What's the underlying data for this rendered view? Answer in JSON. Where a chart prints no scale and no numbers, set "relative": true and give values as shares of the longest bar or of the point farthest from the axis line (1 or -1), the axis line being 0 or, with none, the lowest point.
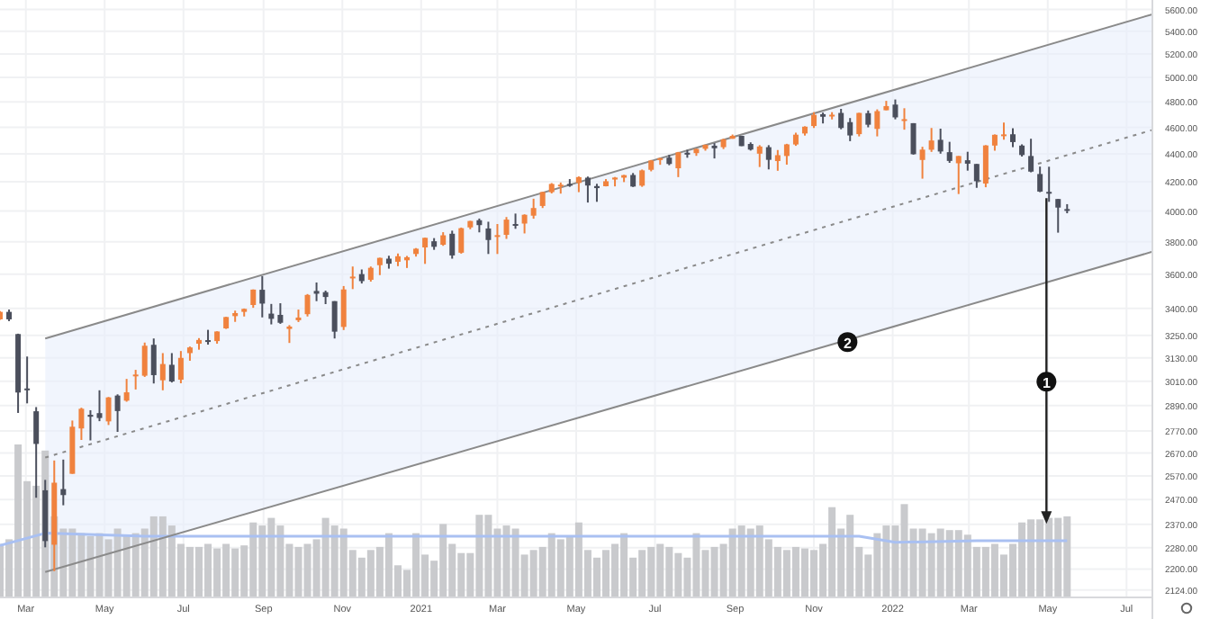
{
  "chart_data": [
    {
      "type": "candlestick",
      "log": "y",
      "grid": true,
      "xlim": [
        "2020-02-10",
        "2022-07-21"
      ],
      "xticks": [
        {
          "value": "2020-03-01",
          "label": "Mar"
        },
        {
          "value": "2020-05-01",
          "label": "May"
        },
        {
          "value": "2020-07-01",
          "label": "Jul"
        },
        {
          "value": "2020-09-01",
          "label": "Sep"
        },
        {
          "value": "2020-11-01",
          "label": "Nov"
        },
        {
          "value": "2021-01-01",
          "label": "2021"
        },
        {
          "value": "2021-03-01",
          "label": "Mar"
        },
        {
          "value": "2021-05-01",
          "label": "May"
        },
        {
          "value": "2021-07-01",
          "label": "Jul"
        },
        {
          "value": "2021-09-01",
          "label": "Sep"
        },
        {
          "value": "2021-11-01",
          "label": "Nov"
        },
        {
          "value": "2022-01-01",
          "label": "2022"
        },
        {
          "value": "2022-03-01",
          "label": "Mar"
        },
        {
          "value": "2022-05-01",
          "label": "May"
        },
        {
          "value": "2022-07-01",
          "label": "Jul"
        }
      ],
      "ylim": [
        2098,
        5690
      ],
      "yticks": [
        {
          "value": 5600,
          "label": "5600.00"
        },
        {
          "value": 5400,
          "label": "5400.00"
        },
        {
          "value": 5200,
          "label": "5200.00"
        },
        {
          "value": 5000,
          "label": "5000.00"
        },
        {
          "value": 4800,
          "label": "4800.00"
        },
        {
          "value": 4600,
          "label": "4600.00"
        },
        {
          "value": 4400,
          "label": "4400.00"
        },
        {
          "value": 4200,
          "label": "4200.00"
        },
        {
          "value": 4000,
          "label": "4000.00"
        },
        {
          "value": 3800,
          "label": "3800.00"
        },
        {
          "value": 3600,
          "label": "3600.00"
        },
        {
          "value": 3400,
          "label": "3400.00"
        },
        {
          "value": 3250,
          "label": "3250.00"
        },
        {
          "value": 3130,
          "label": "3130.00"
        },
        {
          "value": 3010,
          "label": "3010.00"
        },
        {
          "value": 2890,
          "label": "2890.00"
        },
        {
          "value": 2770,
          "label": "2770.00"
        },
        {
          "value": 2670,
          "label": "2670.00"
        },
        {
          "value": 2570,
          "label": "2570.00"
        },
        {
          "value": 2470,
          "label": "2470.00"
        },
        {
          "value": 2370,
          "label": "2370.00"
        },
        {
          "value": 2280,
          "label": "2280.00"
        },
        {
          "value": 2200,
          "label": "2200.00"
        },
        {
          "value": 2124,
          "label": "2124.00"
        }
      ],
      "x": [
        "2020-02-10",
        "2020-02-17",
        "2020-02-24",
        "2020-03-02",
        "2020-03-09",
        "2020-03-16",
        "2020-03-23",
        "2020-03-30",
        "2020-04-06",
        "2020-04-13",
        "2020-04-20",
        "2020-04-27",
        "2020-05-04",
        "2020-05-11",
        "2020-05-18",
        "2020-05-25",
        "2020-06-01",
        "2020-06-08",
        "2020-06-15",
        "2020-06-22",
        "2020-06-29",
        "2020-07-06",
        "2020-07-13",
        "2020-07-20",
        "2020-07-27",
        "2020-08-03",
        "2020-08-10",
        "2020-08-17",
        "2020-08-24",
        "2020-08-31",
        "2020-09-07",
        "2020-09-14",
        "2020-09-21",
        "2020-09-28",
        "2020-10-05",
        "2020-10-12",
        "2020-10-19",
        "2020-10-26",
        "2020-11-02",
        "2020-11-09",
        "2020-11-16",
        "2020-11-23",
        "2020-11-30",
        "2020-12-07",
        "2020-12-14",
        "2020-12-21",
        "2020-12-28",
        "2021-01-04",
        "2021-01-11",
        "2021-01-18",
        "2021-01-25",
        "2021-02-01",
        "2021-02-08",
        "2021-02-15",
        "2021-02-22",
        "2021-03-01",
        "2021-03-08",
        "2021-03-15",
        "2021-03-22",
        "2021-03-29",
        "2021-04-05",
        "2021-04-12",
        "2021-04-19",
        "2021-04-26",
        "2021-05-03",
        "2021-05-10",
        "2021-05-17",
        "2021-05-24",
        "2021-05-31",
        "2021-06-07",
        "2021-06-14",
        "2021-06-21",
        "2021-06-28",
        "2021-07-05",
        "2021-07-12",
        "2021-07-19",
        "2021-07-26",
        "2021-08-02",
        "2021-08-09",
        "2021-08-16",
        "2021-08-23",
        "2021-08-30",
        "2021-09-06",
        "2021-09-13",
        "2021-09-20",
        "2021-09-27",
        "2021-10-04",
        "2021-10-11",
        "2021-10-18",
        "2021-10-25",
        "2021-11-01",
        "2021-11-08",
        "2021-11-15",
        "2021-11-22",
        "2021-11-29",
        "2021-12-06",
        "2021-12-13",
        "2021-12-20",
        "2021-12-27",
        "2022-01-03",
        "2022-01-10",
        "2022-01-17",
        "2022-01-24",
        "2022-01-31",
        "2022-02-07",
        "2022-02-14",
        "2022-02-21",
        "2022-02-28",
        "2022-03-07",
        "2022-03-14",
        "2022-03-21",
        "2022-03-28",
        "2022-04-04",
        "2022-04-11",
        "2022-04-18",
        "2022-04-25",
        "2022-05-02",
        "2022-05-09",
        "2022-05-16"
      ],
      "ohlc": [
        [
          3338,
          3385,
          3335,
          3380
        ],
        [
          3380,
          3393,
          3328,
          3338
        ],
        [
          3257,
          3259,
          2855,
          2954
        ],
        [
          2974,
          3137,
          2901,
          2972
        ],
        [
          2863,
          2883,
          2478,
          2711
        ],
        [
          2509,
          2553,
          2281,
          2305
        ],
        [
          2291,
          2637,
          2192,
          2541
        ],
        [
          2514,
          2641,
          2447,
          2489
        ],
        [
          2579,
          2819,
          2579,
          2790
        ],
        [
          2782,
          2880,
          2729,
          2875
        ],
        [
          2846,
          2868,
          2727,
          2837
        ],
        [
          2854,
          2965,
          2816,
          2831
        ],
        [
          2815,
          2932,
          2798,
          2930
        ],
        [
          2939,
          2945,
          2766,
          2864
        ],
        [
          2914,
          3022,
          2909,
          2955
        ],
        [
          3037,
          3068,
          2969,
          3044
        ],
        [
          3038,
          3211,
          3032,
          3194
        ],
        [
          3199,
          3233,
          2999,
          3041
        ],
        [
          3015,
          3155,
          2965,
          3098
        ],
        [
          3094,
          3155,
          3004,
          3009
        ],
        [
          3018,
          3166,
          3000,
          3130
        ],
        [
          3155,
          3190,
          3115,
          3185
        ],
        [
          3205,
          3235,
          3173,
          3225
        ],
        [
          3224,
          3280,
          3200,
          3216
        ],
        [
          3219,
          3272,
          3205,
          3271
        ],
        [
          3288,
          3352,
          3285,
          3351
        ],
        [
          3356,
          3387,
          3324,
          3373
        ],
        [
          3380,
          3399,
          3354,
          3397
        ],
        [
          3419,
          3509,
          3403,
          3508
        ],
        [
          3507,
          3588,
          3349,
          3427
        ],
        [
          3370,
          3425,
          3310,
          3341
        ],
        [
          3363,
          3429,
          3313,
          3319
        ],
        [
          3285,
          3306,
          3209,
          3298
        ],
        [
          3333,
          3393,
          3323,
          3348
        ],
        [
          3367,
          3482,
          3354,
          3477
        ],
        [
          3500,
          3550,
          3441,
          3484
        ],
        [
          3493,
          3502,
          3424,
          3465
        ],
        [
          3441,
          3441,
          3233,
          3270
        ],
        [
          3296,
          3529,
          3279,
          3509
        ],
        [
          3583,
          3646,
          3511,
          3585
        ],
        [
          3600,
          3628,
          3544,
          3558
        ],
        [
          3566,
          3646,
          3555,
          3638
        ],
        [
          3654,
          3700,
          3594,
          3699
        ],
        [
          3694,
          3712,
          3633,
          3663
        ],
        [
          3675,
          3726,
          3648,
          3709
        ],
        [
          3684,
          3711,
          3637,
          3703
        ],
        [
          3723,
          3760,
          3707,
          3756
        ],
        [
          3764,
          3826,
          3662,
          3825
        ],
        [
          3803,
          3823,
          3749,
          3768
        ],
        [
          3781,
          3861,
          3774,
          3841
        ],
        [
          3851,
          3871,
          3694,
          3714
        ],
        [
          3731,
          3891,
          3725,
          3887
        ],
        [
          3892,
          3935,
          3880,
          3934
        ],
        [
          3939,
          3950,
          3860,
          3907
        ],
        [
          3885,
          3929,
          3723,
          3811
        ],
        [
          3842,
          3914,
          3723,
          3842
        ],
        [
          3844,
          3960,
          3818,
          3943
        ],
        [
          3914,
          3983,
          3883,
          3913
        ],
        [
          3917,
          3978,
          3853,
          3975
        ],
        [
          3969,
          4083,
          3949,
          4020
        ],
        [
          4034,
          4130,
          4020,
          4129
        ],
        [
          4128,
          4191,
          4119,
          4185
        ],
        [
          4179,
          4195,
          4118,
          4180
        ],
        [
          4185,
          4219,
          4165,
          4181
        ],
        [
          4192,
          4238,
          4128,
          4233
        ],
        [
          4229,
          4237,
          4057,
          4174
        ],
        [
          4170,
          4186,
          4062,
          4156
        ],
        [
          4169,
          4219,
          4168,
          4204
        ],
        [
          4216,
          4234,
          4168,
          4230
        ],
        [
          4229,
          4249,
          4198,
          4247
        ],
        [
          4248,
          4262,
          4164,
          4167
        ],
        [
          4173,
          4287,
          4165,
          4281
        ],
        [
          4285,
          4356,
          4274,
          4352
        ],
        [
          4356,
          4372,
          4321,
          4369
        ],
        [
          4373,
          4393,
          4318,
          4327
        ],
        [
          4296,
          4415,
          4233,
          4412
        ],
        [
          4409,
          4430,
          4372,
          4395
        ],
        [
          4406,
          4440,
          4386,
          4437
        ],
        [
          4438,
          4469,
          4424,
          4468
        ],
        [
          4461,
          4480,
          4367,
          4442
        ],
        [
          4450,
          4513,
          4436,
          4509
        ],
        [
          4513,
          4545,
          4513,
          4535
        ],
        [
          4535,
          4535,
          4458,
          4458
        ],
        [
          4474,
          4486,
          4425,
          4432
        ],
        [
          4402,
          4465,
          4305,
          4455
        ],
        [
          4450,
          4465,
          4288,
          4357
        ],
        [
          4348,
          4429,
          4278,
          4391
        ],
        [
          4385,
          4475,
          4322,
          4471
        ],
        [
          4470,
          4559,
          4460,
          4544
        ],
        [
          4553,
          4608,
          4537,
          4605
        ],
        [
          4610,
          4718,
          4595,
          4697
        ],
        [
          4702,
          4715,
          4630,
          4682
        ],
        [
          4689,
          4718,
          4661,
          4698
        ],
        [
          4712,
          4744,
          4585,
          4595
        ],
        [
          4640,
          4672,
          4495,
          4538
        ],
        [
          4548,
          4713,
          4531,
          4712
        ],
        [
          4710,
          4731,
          4600,
          4620
        ],
        [
          4588,
          4740,
          4531,
          4726
        ],
        [
          4733,
          4808,
          4733,
          4766
        ],
        [
          4778,
          4819,
          4662,
          4677
        ],
        [
          4655,
          4749,
          4582,
          4663
        ],
        [
          4632,
          4632,
          4395,
          4398
        ],
        [
          4356,
          4453,
          4222,
          4432
        ],
        [
          4431,
          4595,
          4415,
          4500
        ],
        [
          4505,
          4590,
          4402,
          4418
        ],
        [
          4413,
          4490,
          4335,
          4349
        ],
        [
          4332,
          4385,
          4115,
          4385
        ],
        [
          4354,
          4416,
          4279,
          4329
        ],
        [
          4327,
          4327,
          4158,
          4204
        ],
        [
          4188,
          4465,
          4162,
          4463
        ],
        [
          4462,
          4546,
          4424,
          4543
        ],
        [
          4541,
          4637,
          4506,
          4546
        ],
        [
          4547,
          4593,
          4450,
          4488
        ],
        [
          4462,
          4471,
          4381,
          4392
        ],
        [
          4385,
          4513,
          4267,
          4272
        ],
        [
          4255,
          4308,
          4128,
          4132
        ],
        [
          4130,
          4307,
          4062,
          4123
        ],
        [
          4081,
          4081,
          3858,
          4023
        ],
        [
          4013,
          4046,
          3985,
          4008
        ]
      ],
      "colors": [
        "#f0823e",
        "#4b4f5c",
        "#4b4f5c",
        "#4b4f5c",
        "#4b4f5c",
        "#4b4f5c",
        "#f0823e",
        "#4b4f5c",
        "#f0823e",
        "#f0823e",
        "#4b4f5c",
        "#4b4f5c",
        "#f0823e",
        "#4b4f5c",
        "#f0823e",
        "#f0823e",
        "#f0823e",
        "#4b4f5c",
        "#f0823e",
        "#4b4f5c",
        "#f0823e",
        "#f0823e",
        "#f0823e",
        "#4b4f5c",
        "#f0823e",
        "#f0823e",
        "#f0823e",
        "#f0823e",
        "#f0823e",
        "#4b4f5c",
        "#4b4f5c",
        "#4b4f5c",
        "#f0823e",
        "#f0823e",
        "#f0823e",
        "#4b4f5c",
        "#4b4f5c",
        "#4b4f5c",
        "#f0823e",
        "#f0823e",
        "#4b4f5c",
        "#f0823e",
        "#f0823e",
        "#4b4f5c",
        "#f0823e",
        "#f0823e",
        "#f0823e",
        "#f0823e",
        "#4b4f5c",
        "#f0823e",
        "#4b4f5c",
        "#f0823e",
        "#f0823e",
        "#4b4f5c",
        "#4b4f5c",
        "#f0823e",
        "#f0823e",
        "#4b4f5c",
        "#f0823e",
        "#f0823e",
        "#f0823e",
        "#f0823e",
        "#f0823e",
        "#4b4f5c",
        "#f0823e",
        "#4b4f5c",
        "#4b4f5c",
        "#f0823e",
        "#f0823e",
        "#f0823e",
        "#4b4f5c",
        "#f0823e",
        "#f0823e",
        "#f0823e",
        "#4b4f5c",
        "#f0823e",
        "#4b4f5c",
        "#f0823e",
        "#f0823e",
        "#4b4f5c",
        "#f0823e",
        "#f0823e",
        "#4b4f5c",
        "#4b4f5c",
        "#f0823e",
        "#4b4f5c",
        "#f0823e",
        "#f0823e",
        "#f0823e",
        "#f0823e",
        "#f0823e",
        "#4b4f5c",
        "#f0823e",
        "#4b4f5c",
        "#4b4f5c",
        "#f0823e",
        "#4b4f5c",
        "#f0823e",
        "#f0823e",
        "#4b4f5c",
        "#f0823e",
        "#4b4f5c",
        "#f0823e",
        "#f0823e",
        "#4b4f5c",
        "#4b4f5c",
        "#f0823e",
        "#4b4f5c",
        "#4b4f5c",
        "#f0823e",
        "#f0823e",
        "#f0823e",
        "#4b4f5c",
        "#4b4f5c",
        "#4b4f5c",
        "#4b4f5c",
        "#4b4f5c",
        "#4b4f5c",
        "#4b4f5c"
      ],
      "series": [
        {
          "type": "line",
          "color": "#8a8a8a",
          "x": [
            "2020-03-16",
            "2022-07-21"
          ],
          "values": [
            3233,
            5556
          ]
        },
        {
          "type": "line",
          "color": "#8a8a8a",
          "line_style": "dotted",
          "x": [
            "2020-03-16",
            "2022-07-21"
          ],
          "values": [
            2650,
            4580
          ],
          "lower": [
            2189,
            3737
          ],
          "upper": [
            3233,
            5556
          ]
        },
        {
          "type": "line",
          "color": "#8a8a8a",
          "x": [
            "2020-03-16",
            "2022-07-21"
          ],
          "values": [
            2189,
            3737
          ]
        }
      ],
      "annotations": [
        {
          "text": "1",
          "x": "2022-04-30",
          "y": 3008
        },
        {
          "text": "2",
          "x": "2021-11-27",
          "y": 3214
        }
      ]
    },
    {
      "type": "bar",
      "relative": true,
      "xlim": [
        "2020-02-10",
        "2022-07-21"
      ],
      "series": [
        {
          "type": "bar",
          "color": "#c9cacd",
          "x": [
            "2020-02-10",
            "2020-02-17",
            "2020-02-24",
            "2020-03-02",
            "2020-03-09",
            "2020-03-16",
            "2020-03-23",
            "2020-03-30",
            "2020-04-06",
            "2020-04-13",
            "2020-04-20",
            "2020-04-27",
            "2020-05-04",
            "2020-05-11",
            "2020-05-18",
            "2020-05-25",
            "2020-06-01",
            "2020-06-08",
            "2020-06-15",
            "2020-06-22",
            "2020-06-29",
            "2020-07-06",
            "2020-07-13",
            "2020-07-20",
            "2020-07-27",
            "2020-08-03",
            "2020-08-10",
            "2020-08-17",
            "2020-08-24",
            "2020-08-31",
            "2020-09-07",
            "2020-09-14",
            "2020-09-21",
            "2020-09-28",
            "2020-10-05",
            "2020-10-12",
            "2020-10-19",
            "2020-10-26",
            "2020-11-02",
            "2020-11-09",
            "2020-11-16",
            "2020-11-23",
            "2020-11-30",
            "2020-12-07",
            "2020-12-14",
            "2020-12-21",
            "2020-12-28",
            "2021-01-04",
            "2021-01-11",
            "2021-01-18",
            "2021-01-25",
            "2021-02-01",
            "2021-02-08",
            "2021-02-15",
            "2021-02-22",
            "2021-03-01",
            "2021-03-08",
            "2021-03-15",
            "2021-03-22",
            "2021-03-29",
            "2021-04-05",
            "2021-04-12",
            "2021-04-19",
            "2021-04-26",
            "2021-05-03",
            "2021-05-10",
            "2021-05-17",
            "2021-05-24",
            "2021-05-31",
            "2021-06-07",
            "2021-06-14",
            "2021-06-21",
            "2021-06-28",
            "2021-07-05",
            "2021-07-12",
            "2021-07-19",
            "2021-07-26",
            "2021-08-02",
            "2021-08-09",
            "2021-08-16",
            "2021-08-23",
            "2021-08-30",
            "2021-09-06",
            "2021-09-13",
            "2021-09-20",
            "2021-09-27",
            "2021-10-04",
            "2021-10-11",
            "2021-10-18",
            "2021-10-25",
            "2021-11-01",
            "2021-11-08",
            "2021-11-15",
            "2021-11-22",
            "2021-11-29",
            "2021-12-06",
            "2021-12-13",
            "2021-12-20",
            "2021-12-27",
            "2022-01-03",
            "2022-01-10",
            "2022-01-17",
            "2022-01-24",
            "2022-01-31",
            "2022-02-07",
            "2022-02-14",
            "2022-02-21",
            "2022-02-28",
            "2022-03-07",
            "2022-03-14",
            "2022-03-21",
            "2022-03-28",
            "2022-04-04",
            "2022-04-11",
            "2022-04-18",
            "2022-04-25",
            "2022-05-02",
            "2022-05-09",
            "2022-05-16"
          ],
          "values": [
            0.35,
            0.38,
            1,
            0.76,
            0.73,
            0.96,
            0.53,
            0.45,
            0.45,
            0.42,
            0.4,
            0.42,
            0.38,
            0.45,
            0.4,
            0.42,
            0.45,
            0.53,
            0.53,
            0.47,
            0.35,
            0.33,
            0.33,
            0.35,
            0.32,
            0.35,
            0.32,
            0.34,
            0.49,
            0.47,
            0.52,
            0.47,
            0.35,
            0.33,
            0.35,
            0.38,
            0.52,
            0.47,
            0.45,
            0.31,
            0.26,
            0.31,
            0.33,
            0.42,
            0.21,
            0.18,
            0.42,
            0.28,
            0.24,
            0.48,
            0.35,
            0.29,
            0.29,
            0.54,
            0.54,
            0.45,
            0.47,
            0.45,
            0.28,
            0.31,
            0.33,
            0.42,
            0.38,
            0.4,
            0.49,
            0.31,
            0.26,
            0.31,
            0.35,
            0.42,
            0.26,
            0.31,
            0.33,
            0.35,
            0.33,
            0.29,
            0.26,
            0.42,
            0.31,
            0.33,
            0.35,
            0.45,
            0.47,
            0.45,
            0.47,
            0.38,
            0.33,
            0.31,
            0.33,
            0.32,
            0.31,
            0.35,
            0.59,
            0.45,
            0.54,
            0.33,
            0.28,
            0.42,
            0.47,
            0.47,
            0.61,
            0.45,
            0.45,
            0.42,
            0.45,
            0.44,
            0.44,
            0.41,
            0.33,
            0.33,
            0.35,
            0.28,
            0.35,
            0.49,
            0.51,
            0.51,
            0.52,
            0.52,
            0.53
          ]
        },
        {
          "type": "line",
          "color": "#a9c0f2",
          "x": [
            "2020-02-10",
            "2020-03-16",
            "2020-06-01",
            "2020-09-07",
            "2021-01-04",
            "2021-06-07",
            "2021-10-04",
            "2021-12-06",
            "2022-01-03",
            "2022-03-07",
            "2022-05-16"
          ],
          "values": [
            0.34,
            0.42,
            0.4,
            0.4,
            0.4,
            0.4,
            0.4,
            0.4,
            0.36,
            0.37,
            0.37
          ]
        }
      ]
    }
  ]
}
